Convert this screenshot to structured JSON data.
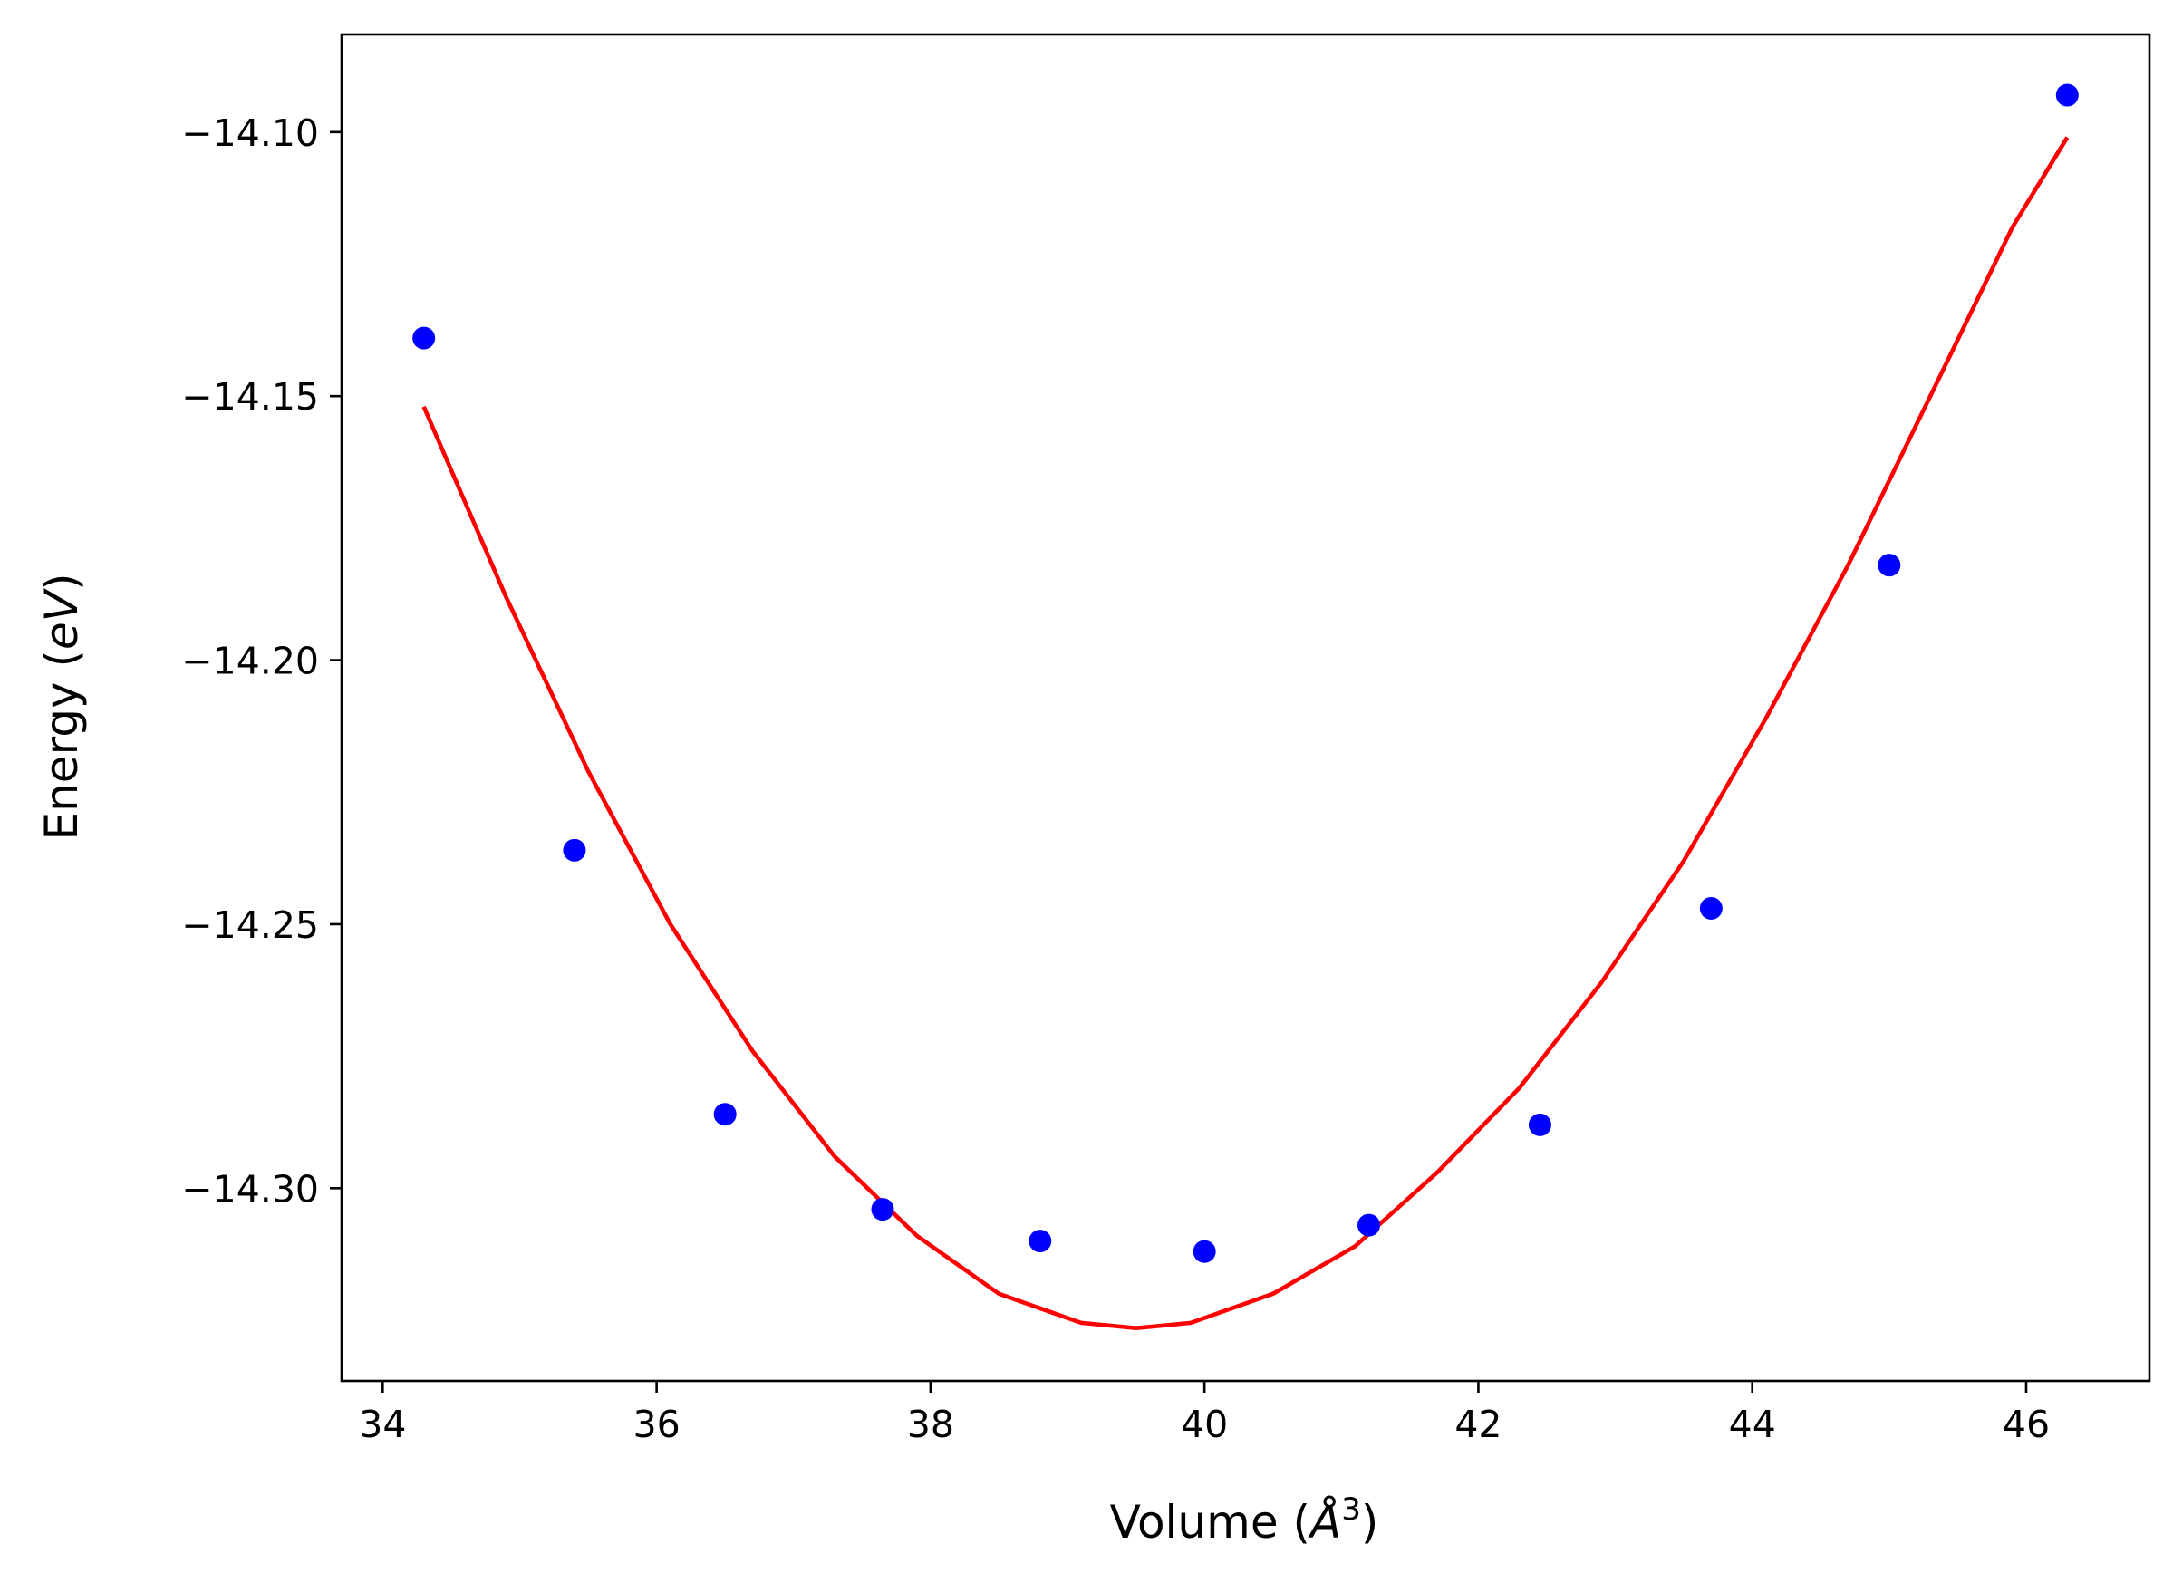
{
  "chart_data": {
    "type": "scatter",
    "title": "",
    "xlabel_main": "Volume (",
    "xlabel_unit": "Å",
    "xlabel_exp": "3",
    "xlabel_close": ")",
    "ylabel_main": "Energy (",
    "ylabel_unit": "eV",
    "ylabel_close": ")",
    "xlim": [
      33.7,
      46.9
    ],
    "ylim": [
      -14.3365,
      -14.0815
    ],
    "x_ticks": [
      34,
      36,
      38,
      40,
      42,
      44,
      46
    ],
    "x_tick_labels": [
      "34",
      "36",
      "38",
      "40",
      "42",
      "44",
      "46"
    ],
    "y_ticks": [
      -14.1,
      -14.15,
      -14.2,
      -14.25,
      -14.3
    ],
    "y_tick_labels": [
      "−14.10",
      "−14.15",
      "−14.20",
      "−14.25",
      "−14.30"
    ],
    "grid": false,
    "series": [
      {
        "kind": "points",
        "color": "#0000ff",
        "x": [
          34.3,
          35.4,
          36.5,
          37.65,
          38.8,
          40.0,
          41.2,
          42.45,
          43.7,
          45.0,
          46.3
        ],
        "y": [
          -14.139,
          -14.236,
          -14.286,
          -14.304,
          -14.31,
          -14.312,
          -14.307,
          -14.288,
          -14.247,
          -14.182,
          -14.093
        ]
      },
      {
        "kind": "line",
        "color": "#ff0000",
        "x": [
          34.3,
          34.9,
          35.5,
          36.1,
          36.7,
          37.3,
          37.9,
          38.5,
          39.1,
          39.5,
          39.9,
          40.5,
          41.1,
          41.7,
          42.3,
          42.9,
          43.5,
          44.1,
          44.7,
          45.3,
          45.9,
          46.3
        ],
        "y": [
          -14.152,
          -14.188,
          -14.221,
          -14.25,
          -14.274,
          -14.294,
          -14.309,
          -14.32,
          -14.3255,
          -14.3265,
          -14.3255,
          -14.32,
          -14.311,
          -14.297,
          -14.281,
          -14.261,
          -14.238,
          -14.211,
          -14.182,
          -14.15,
          -14.118,
          -14.101
        ]
      }
    ]
  }
}
